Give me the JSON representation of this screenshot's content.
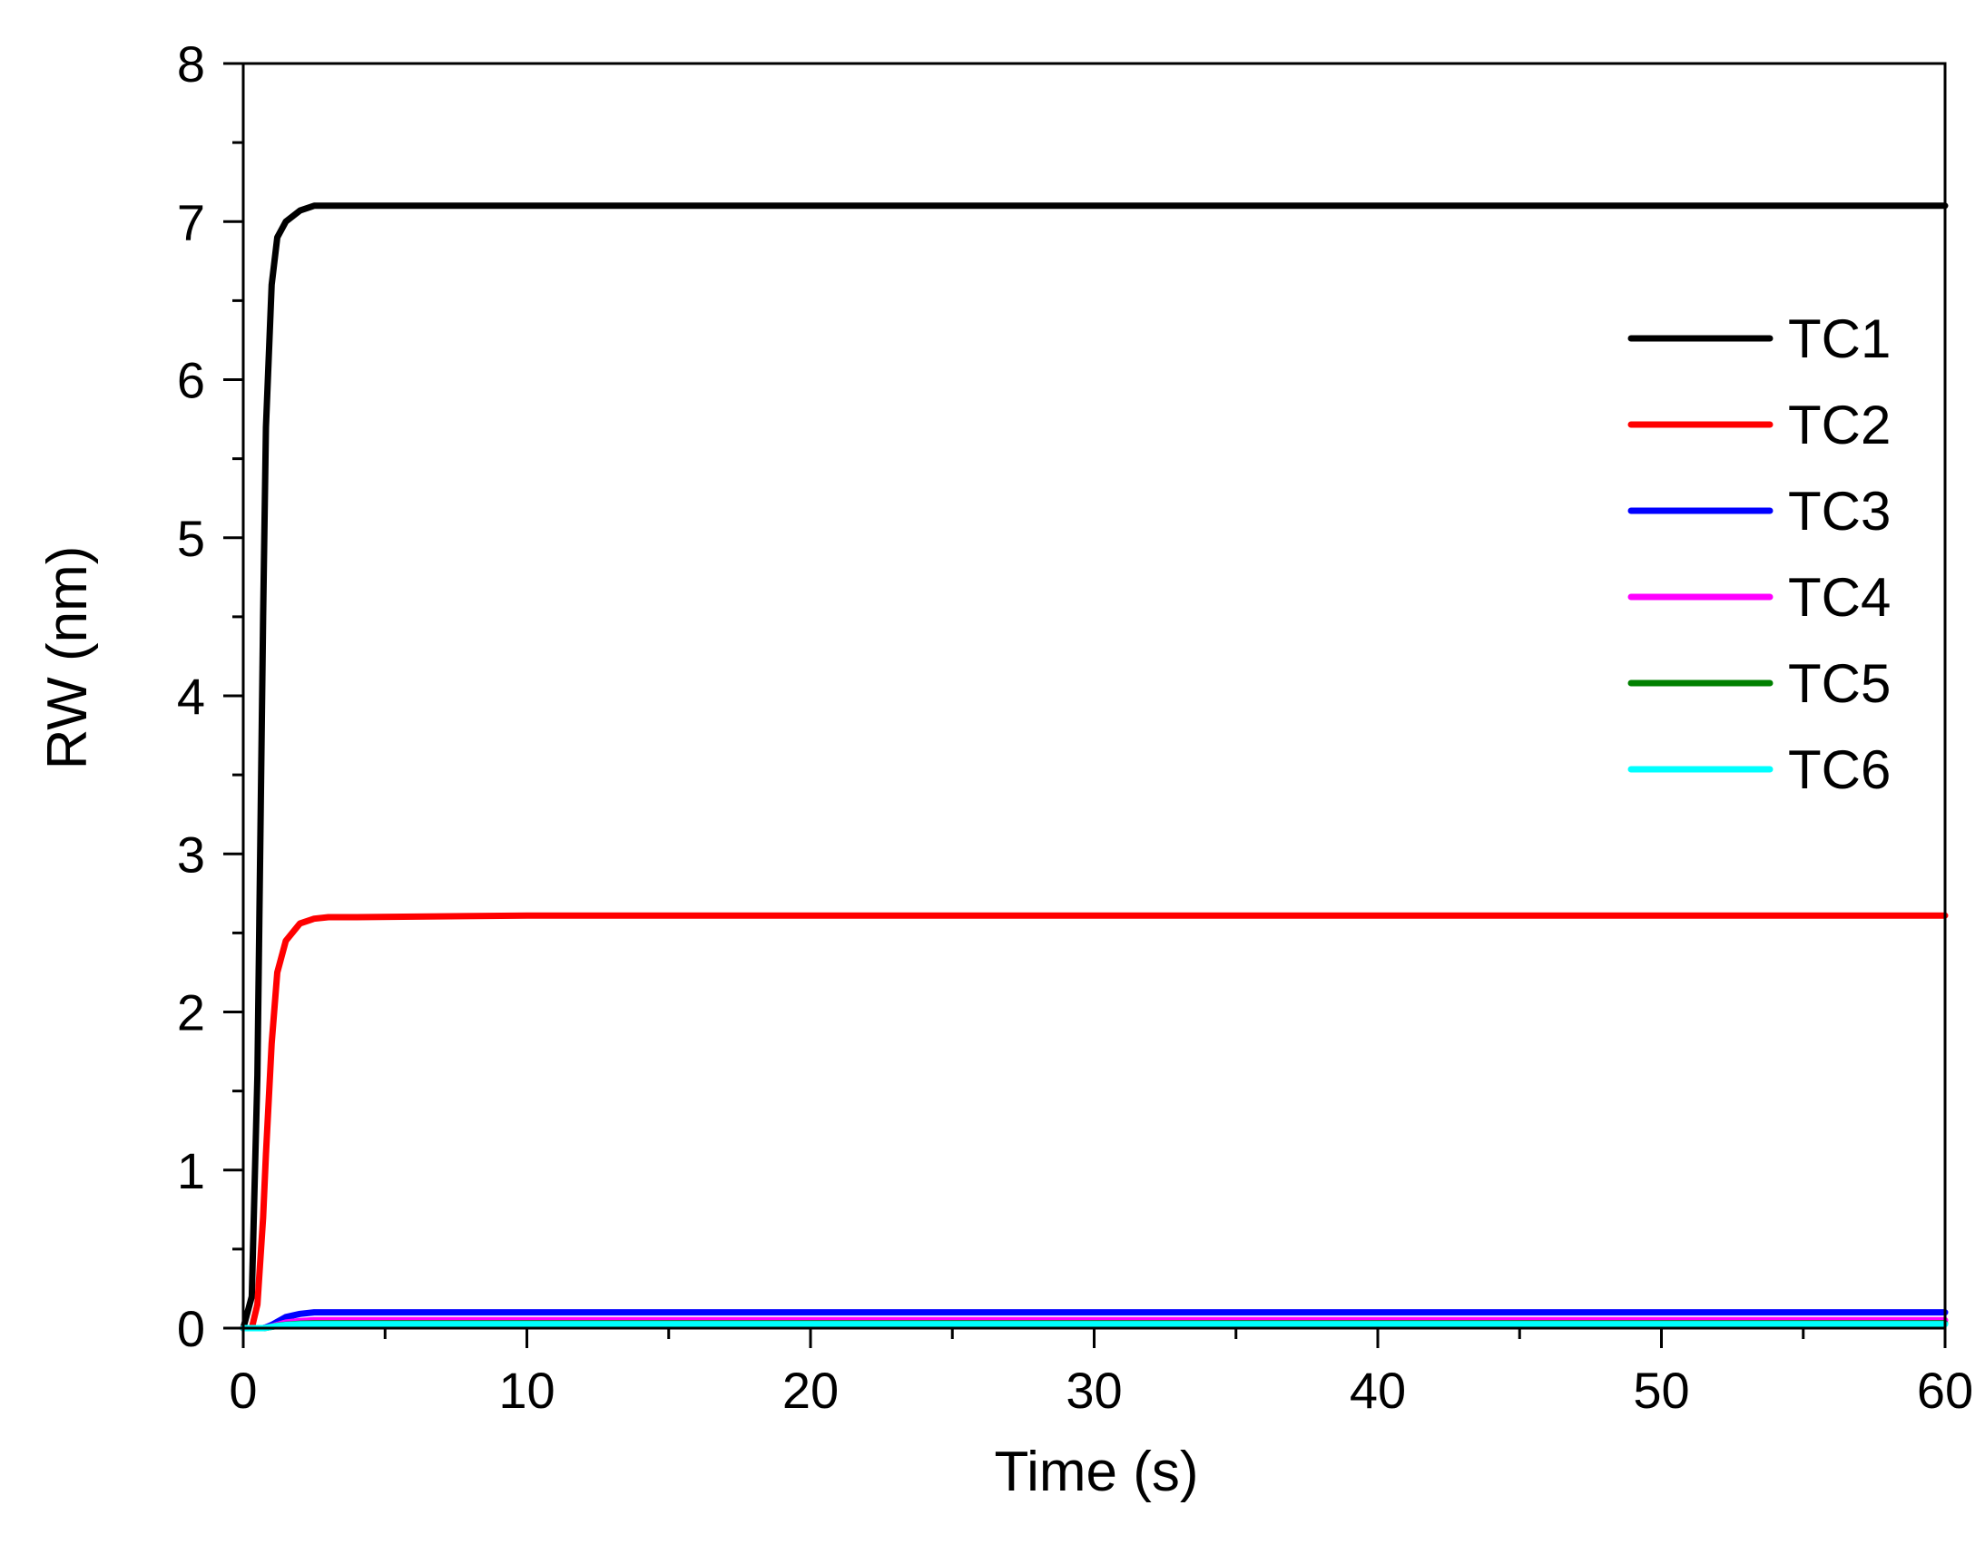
{
  "chart_data": {
    "type": "line",
    "title": "",
    "xlabel": "Time (s)",
    "ylabel": "RW (nm)",
    "xlim": [
      0,
      60
    ],
    "ylim": [
      0,
      8
    ],
    "xticks": [
      "0",
      "10",
      "20",
      "30",
      "40",
      "50",
      "60"
    ],
    "yticks": [
      "0",
      "1",
      "2",
      "3",
      "4",
      "5",
      "6",
      "7",
      "8"
    ],
    "grid": false,
    "legend_position": "upper-right",
    "x": [
      0,
      0.3,
      0.5,
      0.7,
      0.8,
      1.0,
      1.2,
      1.5,
      2.0,
      2.5,
      3.0,
      4.0,
      10,
      20,
      30,
      40,
      50,
      60
    ],
    "series": [
      {
        "name": "TC1",
        "color": "#000000",
        "values": [
          0,
          0.2,
          1.6,
          4.5,
          5.7,
          6.6,
          6.9,
          7.0,
          7.07,
          7.1,
          7.1,
          7.1,
          7.1,
          7.1,
          7.1,
          7.1,
          7.1,
          7.1
        ]
      },
      {
        "name": "TC2",
        "color": "#ff0000",
        "values": [
          0,
          0.0,
          0.15,
          0.7,
          1.1,
          1.8,
          2.25,
          2.45,
          2.56,
          2.59,
          2.6,
          2.6,
          2.61,
          2.61,
          2.61,
          2.61,
          2.61,
          2.61
        ]
      },
      {
        "name": "TC3",
        "color": "#0000ff",
        "values": [
          0,
          0.0,
          0.0,
          0.0,
          0.005,
          0.02,
          0.04,
          0.07,
          0.09,
          0.1,
          0.1,
          0.1,
          0.1,
          0.1,
          0.1,
          0.1,
          0.1,
          0.1
        ]
      },
      {
        "name": "TC4",
        "color": "#ff00ff",
        "values": [
          0,
          0.0,
          0.0,
          0.0,
          0.003,
          0.01,
          0.02,
          0.035,
          0.045,
          0.05,
          0.05,
          0.05,
          0.05,
          0.05,
          0.05,
          0.05,
          0.05,
          0.05
        ]
      },
      {
        "name": "TC5",
        "color": "#008000",
        "values": [
          0,
          0.0,
          0.0,
          0.0,
          0.002,
          0.008,
          0.015,
          0.022,
          0.028,
          0.03,
          0.03,
          0.03,
          0.03,
          0.03,
          0.03,
          0.03,
          0.03,
          0.03
        ]
      },
      {
        "name": "TC6",
        "color": "#00ffff",
        "values": [
          0,
          0.0,
          0.0,
          0.0,
          0.002,
          0.008,
          0.014,
          0.02,
          0.024,
          0.025,
          0.025,
          0.025,
          0.025,
          0.025,
          0.025,
          0.025,
          0.025,
          0.025
        ]
      }
    ]
  }
}
